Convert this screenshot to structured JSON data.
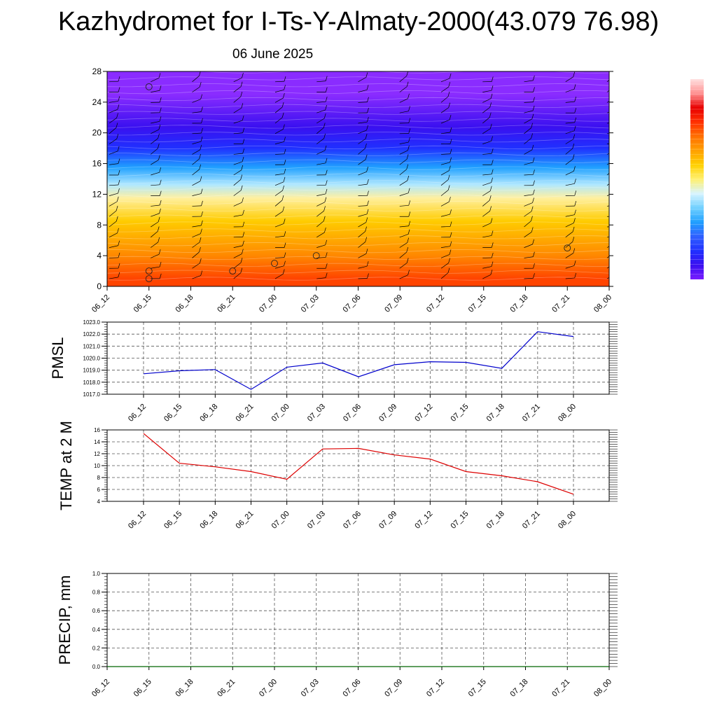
{
  "page": {
    "title": "Kazhydromet for I-Ts-Y-Almaty-2000(43.079 76.98)",
    "subtitle": "06 June 2025"
  },
  "colors": {
    "pmsl_line": "#0000cc",
    "temp_line": "#dd0000",
    "precip_line": "#006400",
    "grid": "#555555"
  },
  "chart_data": [
    {
      "id": "profile",
      "type": "heatmap",
      "description_colors": [
        "#ff4400",
        "#ff8800",
        "#ffcc00",
        "#fff0a0",
        "#b0e8ff",
        "#20a0ff",
        "#2030ff",
        "#3a10f0",
        "#8a2cff"
      ],
      "categories": [
        "06_12",
        "06_15",
        "06_18",
        "06_21",
        "07_00",
        "07_03",
        "07_06",
        "07_09",
        "07_12",
        "07_15",
        "07_18",
        "07_21",
        "08_00"
      ],
      "ylim": [
        0,
        28
      ],
      "yticks": [
        0,
        4,
        8,
        12,
        16,
        20,
        24,
        28
      ],
      "band_boundaries": [
        0,
        2,
        6,
        11,
        12,
        14.5,
        16.5,
        19.5,
        22,
        28
      ],
      "calm_markers": [
        {
          "x": 1,
          "y": 26
        },
        {
          "x": 1,
          "y": 2
        },
        {
          "x": 1,
          "y": 1
        },
        {
          "x": 3,
          "y": 2
        },
        {
          "x": 4,
          "y": 3
        },
        {
          "x": 5,
          "y": 4
        },
        {
          "x": 11,
          "y": 5
        }
      ]
    },
    {
      "id": "pmsl",
      "type": "line",
      "ylabel": "PMSL",
      "categories": [
        "06_12",
        "06_15",
        "06_18",
        "06_21",
        "07_00",
        "07_03",
        "07_06",
        "07_09",
        "07_12",
        "07_15",
        "07_18",
        "07_21",
        "08_00"
      ],
      "values": [
        1018.7,
        1018.95,
        1019.05,
        1017.4,
        1019.25,
        1019.6,
        1018.45,
        1019.45,
        1019.7,
        1019.65,
        1019.15,
        1022.2,
        1021.8
      ],
      "ylim": [
        1017,
        1023
      ],
      "yticks": [
        "1017.0",
        "1018.0",
        "1019.0",
        "1020.0",
        "1021.0",
        "1022.0",
        "1023.0"
      ],
      "grid": true
    },
    {
      "id": "temp",
      "type": "line",
      "ylabel": "TEMP at 2 M",
      "categories": [
        "06_12",
        "06_15",
        "06_18",
        "06_21",
        "07_00",
        "07_03",
        "07_06",
        "07_09",
        "07_12",
        "07_15",
        "07_18",
        "07_21",
        "08_00"
      ],
      "values": [
        15.4,
        10.4,
        9.8,
        9.0,
        7.7,
        12.8,
        12.9,
        11.8,
        11.1,
        9.0,
        8.3,
        7.3,
        5.2
      ],
      "ylim": [
        4,
        16
      ],
      "yticks": [
        "4",
        "6",
        "8",
        "10",
        "12",
        "14",
        "16"
      ],
      "grid": true
    },
    {
      "id": "precip",
      "type": "line",
      "ylabel": "PRECIP, mm",
      "categories": [
        "06_12",
        "06_15",
        "06_18",
        "06_21",
        "07_00",
        "07_03",
        "07_06",
        "07_09",
        "07_12",
        "07_15",
        "07_18",
        "07_21",
        "08_00"
      ],
      "values": [
        0,
        0,
        0,
        0,
        0,
        0,
        0,
        0,
        0,
        0,
        0,
        0,
        0
      ],
      "ylim": [
        0,
        1
      ],
      "yticks": [
        "0.0",
        "0.2",
        "0.4",
        "0.6",
        "0.8",
        "1.0"
      ],
      "grid": true
    }
  ]
}
